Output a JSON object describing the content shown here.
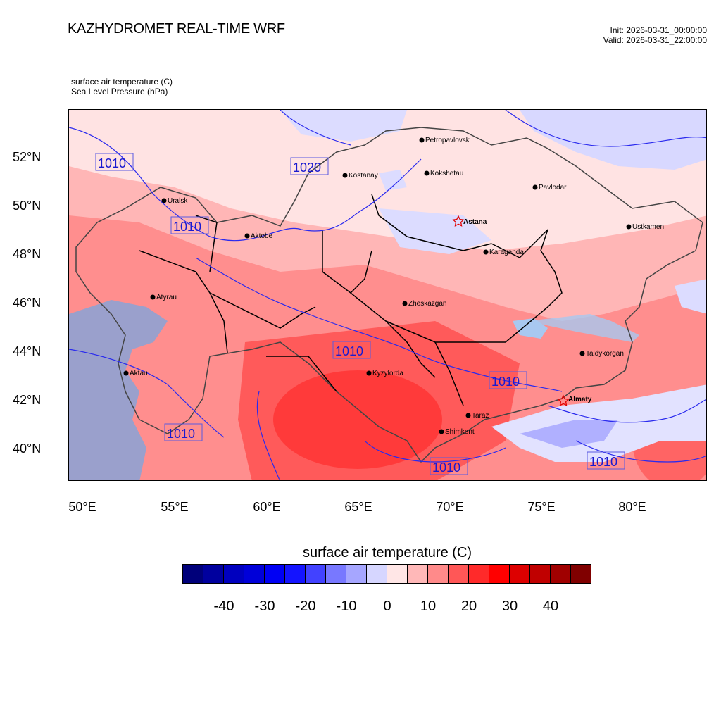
{
  "header": {
    "title": "KAZHYDROMET REAL-TIME WRF",
    "init": "Init: 2026-03-31_00:00:00",
    "valid": "Valid: 2026-03-31_22:00:00",
    "var1": "surface air temperature   (C)",
    "var2": "Sea Level Pressure   (hPa)"
  },
  "axes": {
    "lat_labels": [
      "52°N",
      "50°N",
      "48°N",
      "46°N",
      "44°N",
      "42°N",
      "40°N"
    ],
    "lon_labels": [
      "50°E",
      "55°E",
      "60°E",
      "65°E",
      "70°E",
      "75°E",
      "80°E"
    ]
  },
  "cities": [
    {
      "name": "Petropavlovsk",
      "bold": false
    },
    {
      "name": "Kostanay",
      "bold": false
    },
    {
      "name": "Kokshetau",
      "bold": false
    },
    {
      "name": "Pavlodar",
      "bold": false
    },
    {
      "name": "Uralsk",
      "bold": false
    },
    {
      "name": "Astana",
      "bold": true
    },
    {
      "name": "Ustkamen",
      "bold": false
    },
    {
      "name": "Aktobe",
      "bold": false
    },
    {
      "name": "Karaganda",
      "bold": false
    },
    {
      "name": "Atyrau",
      "bold": false
    },
    {
      "name": "Zheskazgan",
      "bold": false
    },
    {
      "name": "Taldykorgan",
      "bold": false
    },
    {
      "name": "Kyzylorda",
      "bold": false
    },
    {
      "name": "Aktau",
      "bold": false
    },
    {
      "name": "Almaty",
      "bold": true
    },
    {
      "name": "Taraz",
      "bold": false
    },
    {
      "name": "Shimkent",
      "bold": false
    }
  ],
  "isobar_labels": [
    "1010",
    "1020",
    "1010",
    "1010",
    "1010",
    "1010",
    "1010",
    "1010"
  ],
  "colorbar": {
    "title": "surface air temperature  (C)",
    "labels": [
      "-40",
      "-30",
      "-20",
      "-10",
      "0",
      "10",
      "20",
      "30",
      "40"
    ],
    "colors": [
      "#00007a",
      "#00009e",
      "#0000bf",
      "#0000d9",
      "#0000f4",
      "#1414ff",
      "#4242ff",
      "#7878ff",
      "#a6a6ff",
      "#d6d6ff",
      "#ffe6e6",
      "#ffb8b8",
      "#ff8a8a",
      "#ff5757",
      "#ff2a2a",
      "#ff0000",
      "#dd0000",
      "#c00000",
      "#a00000",
      "#800000"
    ]
  }
}
